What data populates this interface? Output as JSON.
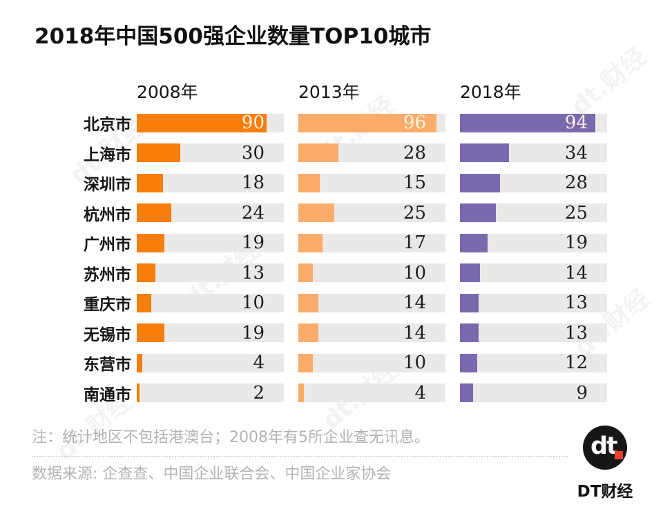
{
  "title": "2018年中国500强企业数量TOP10城市",
  "chart_data": {
    "type": "bar",
    "orientation": "horizontal",
    "title": "2018年中国500强企业数量TOP10城市",
    "categories": [
      "北京市",
      "上海市",
      "深圳市",
      "杭州市",
      "广州市",
      "苏州市",
      "重庆市",
      "无锡市",
      "东营市",
      "南通市"
    ],
    "series": [
      {
        "name": "2008年",
        "color": "#F97D0B",
        "values": [
          90,
          30,
          18,
          24,
          19,
          13,
          10,
          19,
          4,
          2
        ]
      },
      {
        "name": "2013年",
        "color": "#FBAC6B",
        "values": [
          96,
          28,
          15,
          25,
          17,
          10,
          14,
          14,
          10,
          4
        ]
      },
      {
        "name": "2018年",
        "color": "#7B69AE",
        "values": [
          94,
          34,
          28,
          25,
          19,
          14,
          13,
          13,
          12,
          9
        ]
      }
    ],
    "scale_max": 102,
    "track_color": "#EAE9E7",
    "value_labels": "shown at right of each track",
    "legend_position": "column headers above each bar group",
    "grid": false
  },
  "footer": {
    "note": "注：统计地区不包括港澳台；2008年有5所企业查无讯息。",
    "source": "数据来源: 企查查、中国企业联合会、中国企业家协会"
  },
  "logo": {
    "glyph": "dt",
    "brand": "DT财经",
    "dot_color": "#EA4228",
    "circle_color": "#161616"
  },
  "watermark_text": "dt.财经"
}
